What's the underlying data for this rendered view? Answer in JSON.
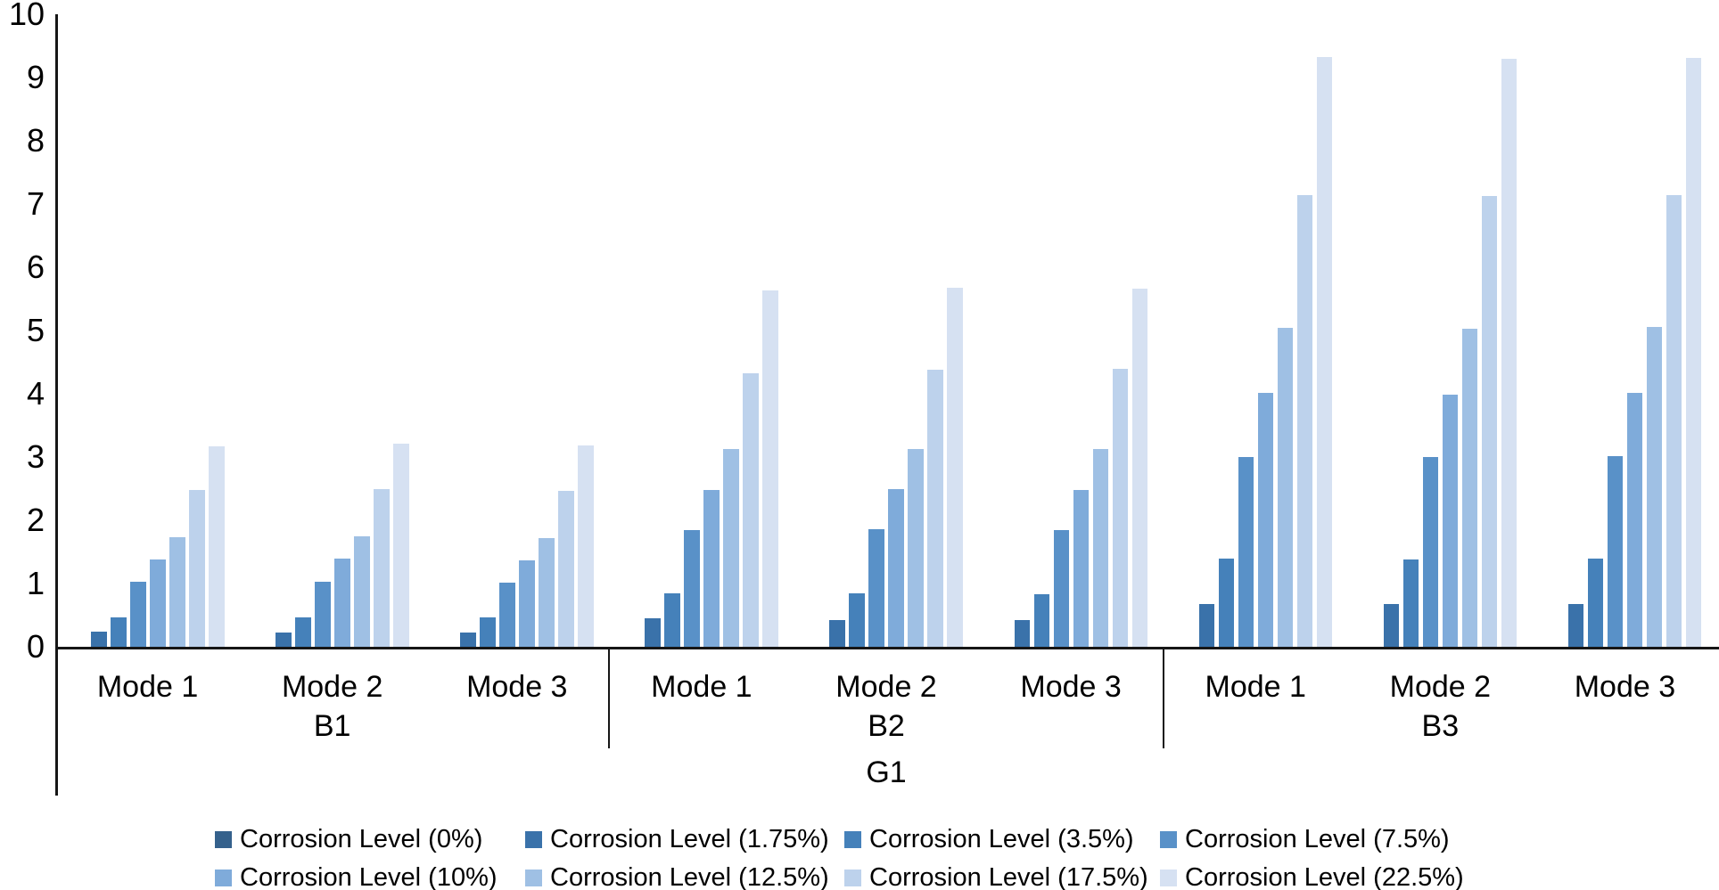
{
  "chart_data": {
    "type": "bar",
    "title": "",
    "xlabel": "",
    "ylabel": "",
    "ylim": [
      0,
      10
    ],
    "yticks": [
      0,
      1,
      2,
      3,
      4,
      5,
      6,
      7,
      8,
      9,
      10
    ],
    "grid": false,
    "legend_position": "bottom",
    "axis_group_label": "G1",
    "sections": [
      {
        "label": "B1",
        "modes": [
          "Mode 1",
          "Mode 2",
          "Mode 3"
        ]
      },
      {
        "label": "B2",
        "modes": [
          "Mode 1",
          "Mode 2",
          "Mode 3"
        ]
      },
      {
        "label": "B3",
        "modes": [
          "Mode 1",
          "Mode 2",
          "Mode 3"
        ]
      }
    ],
    "series": [
      {
        "name": "Corrosion Level (0%)",
        "color": "#35618C",
        "values": [
          0,
          0,
          0,
          0,
          0,
          0,
          0,
          0,
          0
        ]
      },
      {
        "name": "Corrosion Level (1.75%)",
        "color": "#3A72AA",
        "values": [
          0.24,
          0.22,
          0.22,
          0.45,
          0.42,
          0.42,
          0.68,
          0.67,
          0.67
        ]
      },
      {
        "name": "Corrosion Level (3.5%)",
        "color": "#4581BA",
        "values": [
          0.47,
          0.47,
          0.46,
          0.85,
          0.84,
          0.83,
          1.4,
          1.38,
          1.39
        ]
      },
      {
        "name": "Corrosion Level (7.5%)",
        "color": "#5991C8",
        "values": [
          1.03,
          1.03,
          1.02,
          1.84,
          1.86,
          1.85,
          3.0,
          3.0,
          3.01
        ]
      },
      {
        "name": "Corrosion Level (10%)",
        "color": "#7FABDA",
        "values": [
          1.38,
          1.39,
          1.37,
          2.48,
          2.49,
          2.48,
          4.01,
          3.99,
          4.01
        ]
      },
      {
        "name": "Corrosion Level (12.5%)",
        "color": "#9FC0E4",
        "values": [
          1.73,
          1.74,
          1.72,
          3.12,
          3.13,
          3.12,
          5.04,
          5.03,
          5.05
        ]
      },
      {
        "name": "Corrosion Level (17.5%)",
        "color": "#BDD2EC",
        "values": [
          2.48,
          2.49,
          2.47,
          4.32,
          4.38,
          4.39,
          7.14,
          7.13,
          7.14
        ]
      },
      {
        "name": "Corrosion Level (22.5%)",
        "color": "#D6E1F2",
        "values": [
          3.17,
          3.21,
          3.18,
          5.63,
          5.68,
          5.66,
          9.33,
          9.3,
          9.31
        ]
      }
    ]
  }
}
